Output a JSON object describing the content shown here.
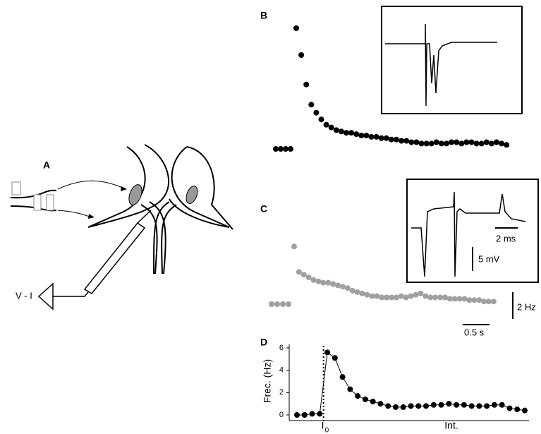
{
  "panel_labels": [
    "A",
    "B",
    "C",
    "D"
  ],
  "diagram": {
    "label": "V - I"
  },
  "insets": {
    "b": {},
    "c": {
      "time_bar": "2 ms",
      "voltage_bar": "5 mV"
    }
  },
  "scale_bars": {
    "y": "2 Hz",
    "x": "0.5 s"
  },
  "chart_data": [
    {
      "type": "scatter",
      "color": "#000000",
      "ylim": [
        0,
        10
      ],
      "values": [
        0,
        0,
        0,
        0,
        9.0,
        7.0,
        4.8,
        3.3,
        2.7,
        2.2,
        1.8,
        1.6,
        1.4,
        1.3,
        1.2,
        1.2,
        1.1,
        1.0,
        1.0,
        0.9,
        0.9,
        0.8,
        0.8,
        0.7,
        0.7,
        0.6,
        0.6,
        0.5,
        0.5,
        0.4,
        0.4,
        0.4,
        0.5,
        0.4,
        0.4,
        0.5,
        0.5,
        0.4,
        0.5,
        0.5,
        0.4,
        0.4,
        0.5,
        0.4,
        0.5,
        0.4,
        0.3
      ]
    },
    {
      "type": "scatter",
      "color": "#a0a0a0",
      "ylim": [
        0,
        5
      ],
      "values": [
        0,
        0,
        0,
        0,
        4.3,
        2.4,
        2.2,
        2.0,
        1.8,
        1.7,
        1.6,
        1.6,
        1.5,
        1.4,
        1.3,
        1.2,
        1.0,
        0.9,
        0.8,
        0.7,
        0.6,
        0.6,
        0.5,
        0.5,
        0.5,
        0.5,
        0.6,
        0.5,
        0.6,
        0.7,
        0.8,
        0.6,
        0.5,
        0.5,
        0.5,
        0.5,
        0.4,
        0.4,
        0.4,
        0.4,
        0.3,
        0.3,
        0.3,
        0.2,
        0.2,
        0.2
      ]
    },
    {
      "type": "line",
      "color": "#000000",
      "ylabel": "Frec. (Hz)",
      "xlabel": "Int.",
      "ylim": [
        0,
        6
      ],
      "yticks": [
        0,
        2,
        4,
        6
      ],
      "xlim": [
        0,
        30
      ],
      "marker": {
        "x": 3.5,
        "label": "I",
        "subscript": "0"
      },
      "values": [
        0,
        0,
        0.1,
        0.1,
        5.6,
        5.1,
        3.4,
        2.3,
        1.7,
        1.4,
        1.2,
        1.0,
        0.8,
        0.7,
        0.7,
        0.8,
        0.8,
        0.8,
        0.9,
        0.9,
        1.0,
        0.9,
        0.9,
        0.8,
        0.8,
        0.8,
        0.9,
        0.9,
        0.6,
        0.5,
        0.4
      ]
    }
  ]
}
